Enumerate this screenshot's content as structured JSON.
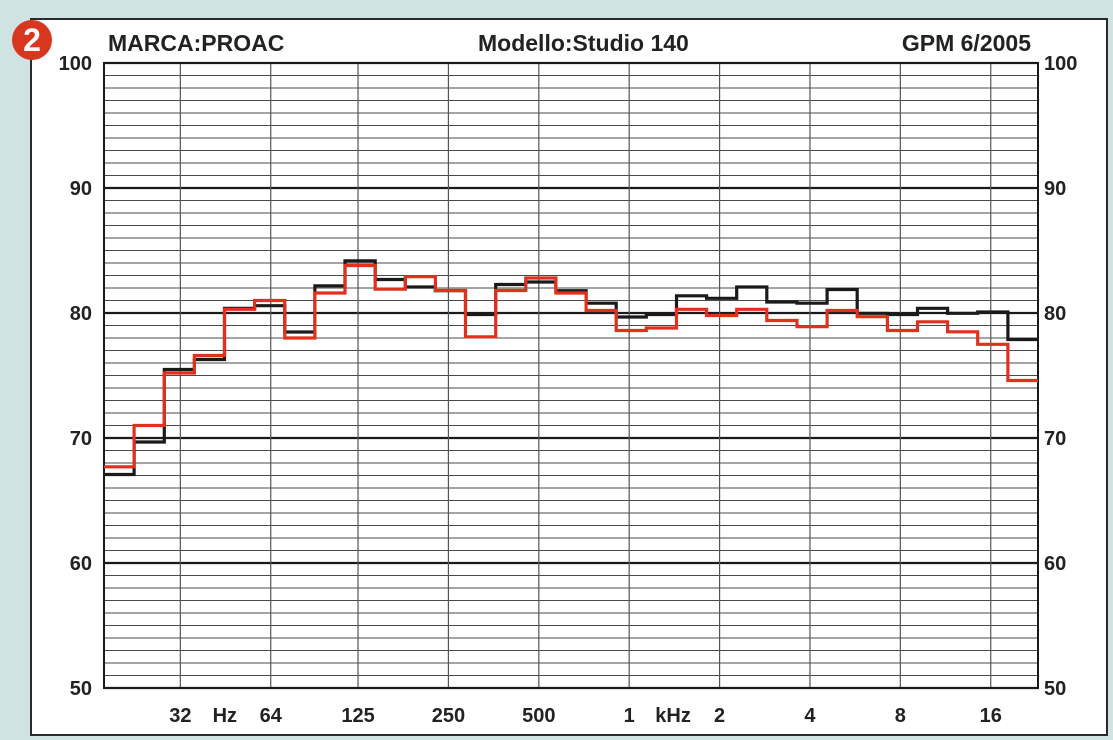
{
  "badge": "2",
  "header": {
    "brand": "MARCA:PROAC",
    "model": "Modello:Studio 140",
    "source": "GPM  6/2005"
  },
  "colors": {
    "series_black": "#1a1a1a",
    "series_red": "#e0301e",
    "badge": "#d8361e",
    "grid": "#333333"
  },
  "chart_data": {
    "type": "line",
    "step": true,
    "title": "",
    "xlabel": "",
    "ylabel": "",
    "x_scale": "log",
    "x_unit_labels": [
      "Hz",
      "kHz"
    ],
    "ylim": [
      50,
      100
    ],
    "y_ticks": [
      50,
      60,
      70,
      80,
      90,
      100
    ],
    "y_tick_labels": [
      "50",
      "60",
      "70",
      "80",
      "90",
      "100"
    ],
    "x_ticks": [
      {
        "freq": 32,
        "label": "32"
      },
      {
        "freq": 64,
        "label": "64"
      },
      {
        "freq": 125,
        "label": "125"
      },
      {
        "freq": 250,
        "label": "250"
      },
      {
        "freq": 500,
        "label": "500"
      },
      {
        "freq": 1000,
        "label": "1"
      },
      {
        "freq": 2000,
        "label": "2"
      },
      {
        "freq": 4000,
        "label": "4"
      },
      {
        "freq": 8000,
        "label": "8"
      },
      {
        "freq": 16000,
        "label": "16"
      }
    ],
    "x_labeled_units": [
      {
        "freq": 45,
        "label": "Hz"
      },
      {
        "freq": 1400,
        "label": "kHz"
      }
    ],
    "bands_hz": [
      20,
      25,
      31.5,
      40,
      50,
      63,
      80,
      100,
      125,
      160,
      200,
      250,
      315,
      400,
      500,
      630,
      800,
      1000,
      1250,
      1600,
      2000,
      2500,
      3150,
      4000,
      5000,
      6300,
      8000,
      10000,
      12500,
      16000,
      20000
    ],
    "grid": true,
    "series": [
      {
        "color": "#1a1a1a",
        "values": [
          67.2,
          69.8,
          75.6,
          76.4,
          80.5,
          80.7,
          78.6,
          82.3,
          84.3,
          82.8,
          82.2,
          81.9,
          80.0,
          82.4,
          82.6,
          81.9,
          80.9,
          79.8,
          80.0,
          81.5,
          81.3,
          82.2,
          81.0,
          80.9,
          82.0,
          80.1,
          80.0,
          80.5,
          80.1,
          80.2,
          78.0
        ]
      },
      {
        "color": "#e0301e",
        "values": [
          67.7,
          71.0,
          75.2,
          76.6,
          80.3,
          81.0,
          78.0,
          81.6,
          83.8,
          81.9,
          82.9,
          81.8,
          78.1,
          81.8,
          82.8,
          81.6,
          80.2,
          78.6,
          78.8,
          80.3,
          79.8,
          80.3,
          79.4,
          78.9,
          80.2,
          79.7,
          78.6,
          79.3,
          78.5,
          77.5,
          74.6
        ]
      }
    ]
  }
}
